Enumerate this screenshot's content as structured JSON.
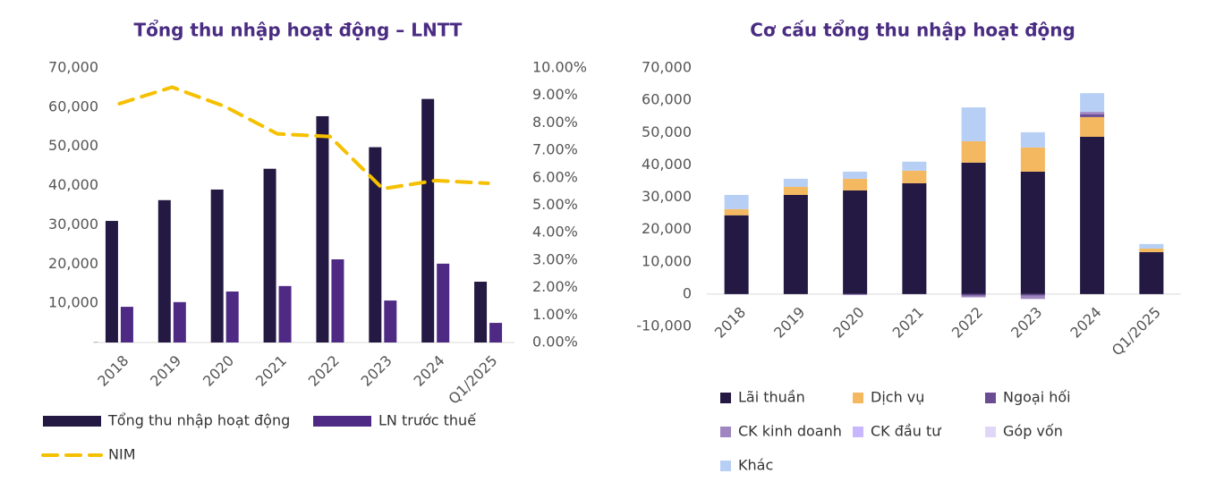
{
  "chart_data": [
    {
      "type": "bar",
      "title": "Tổng thu nhập hoạt động – LNTT",
      "categories": [
        "2018",
        "2019",
        "2020",
        "2021",
        "2022",
        "2023",
        "2024",
        "Q1/2025"
      ],
      "series": [
        {
          "name": "Tổng thu nhập hoạt động",
          "color": "#231942",
          "values": [
            31000,
            36300,
            39000,
            44300,
            57700,
            49800,
            62100,
            15500
          ]
        },
        {
          "name": "LN trước thuế",
          "color": "#4e2a84",
          "values": [
            9100,
            10300,
            13000,
            14400,
            21200,
            10700,
            20100,
            5000
          ]
        },
        {
          "name": "NIM",
          "type": "line",
          "axis": "y2",
          "color": "#f5c000",
          "values": [
            8.7,
            9.3,
            8.6,
            7.6,
            7.5,
            5.6,
            5.9,
            5.8
          ]
        }
      ],
      "ylim": [
        0,
        70000
      ],
      "yticks": [
        {
          "value": 0,
          "label": "-"
        },
        {
          "value": 10000,
          "label": "10,000"
        },
        {
          "value": 20000,
          "label": "20,000"
        },
        {
          "value": 30000,
          "label": "30,000"
        },
        {
          "value": 40000,
          "label": "40,000"
        },
        {
          "value": 50000,
          "label": "50,000"
        },
        {
          "value": 60000,
          "label": "60,000"
        },
        {
          "value": 70000,
          "label": "70,000"
        }
      ],
      "y2lim": [
        0,
        10
      ],
      "y2ticks": [
        {
          "value": 0,
          "label": "0.00%"
        },
        {
          "value": 1,
          "label": "1.00%"
        },
        {
          "value": 2,
          "label": "2.00%"
        },
        {
          "value": 3,
          "label": "3.00%"
        },
        {
          "value": 4,
          "label": "4.00%"
        },
        {
          "value": 5,
          "label": "5.00%"
        },
        {
          "value": 6,
          "label": "6.00%"
        },
        {
          "value": 7,
          "label": "7.00%"
        },
        {
          "value": 8,
          "label": "8.00%"
        },
        {
          "value": 9,
          "label": "9.00%"
        },
        {
          "value": 10,
          "label": "10.00%"
        }
      ],
      "legend": "bottom"
    },
    {
      "type": "bar",
      "stacked": true,
      "title": "Cơ cấu tổng thu nhập hoạt động",
      "categories": [
        "2018",
        "2019",
        "2020",
        "2021",
        "2022",
        "2023",
        "2024",
        "Q1/2025"
      ],
      "series": [
        {
          "name": "Lãi thuần",
          "color": "#231942",
          "values": [
            24400,
            30700,
            32100,
            34300,
            40700,
            37900,
            48700,
            13000
          ]
        },
        {
          "name": "Dịch vụ",
          "color": "#f4b860",
          "values": [
            1900,
            2500,
            3600,
            3900,
            6600,
            7500,
            6100,
            1100
          ]
        },
        {
          "name": "Ngoại hối",
          "color": "#6a4c93",
          "values": [
            0,
            0,
            0,
            0,
            -500,
            -500,
            800,
            0
          ]
        },
        {
          "name": "CK kinh doanh",
          "color": "#9f86c0",
          "values": [
            0,
            0,
            -300,
            0,
            -500,
            -1000,
            800,
            0
          ]
        },
        {
          "name": "CK đầu tư",
          "color": "#c8b6ff",
          "values": [
            0,
            0,
            0,
            0,
            0,
            0,
            0,
            0
          ]
        },
        {
          "name": "Góp vốn",
          "color": "#e0d6f7",
          "values": [
            0,
            0,
            0,
            0,
            0,
            0,
            0,
            0
          ]
        },
        {
          "name": "Khác",
          "color": "#b8cff5",
          "values": [
            4400,
            2500,
            2200,
            2800,
            10500,
            4700,
            5800,
            1400
          ]
        }
      ],
      "ylim": [
        -10000,
        70000
      ],
      "yticks": [
        {
          "value": -10000,
          "label": "-10,000"
        },
        0,
        {
          "value": 10000,
          "label": "10,000"
        },
        {
          "value": 20000,
          "label": "20,000"
        },
        {
          "value": 30000,
          "label": "30,000"
        },
        {
          "value": 40000,
          "label": "40,000"
        },
        {
          "value": 50000,
          "label": "50,000"
        },
        {
          "value": 60000,
          "label": "60,000"
        },
        {
          "value": 70000,
          "label": "70,000"
        }
      ],
      "legend": "bottom"
    }
  ]
}
